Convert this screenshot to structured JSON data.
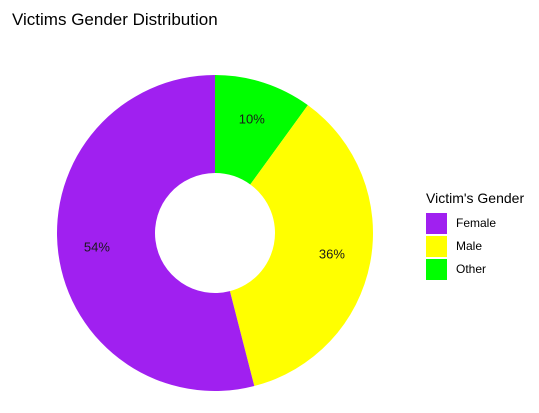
{
  "chart_data": {
    "type": "pie",
    "title": "Victims Gender Distribution",
    "legend_title": "Victim's Gender",
    "legend_position": "right",
    "donut": true,
    "slices": [
      {
        "name": "Female",
        "value": 54,
        "label": "54%",
        "color": "#a020f0"
      },
      {
        "name": "Male",
        "value": 36,
        "label": "36%",
        "color": "#ffff00"
      },
      {
        "name": "Other",
        "value": 10,
        "label": "10%",
        "color": "#00ff00"
      }
    ]
  }
}
